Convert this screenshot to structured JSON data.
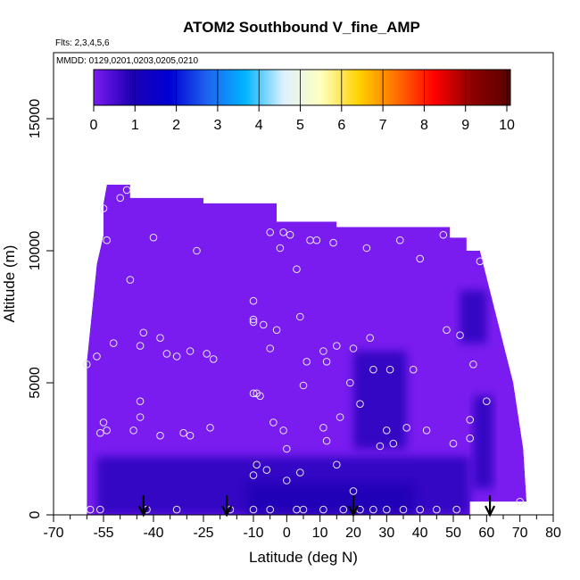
{
  "chart_data": {
    "type": "heatmap",
    "title": "ATOM2 Southbound V_fine_AMP",
    "subtitle_flights": "Flts: 2,3,4,5,6",
    "subtitle_dates": "MMDD: 0129,0201,0203,0205,0210",
    "xlabel": "Latitude (deg N)",
    "ylabel": "Altitude (m)",
    "xlim": [
      -70,
      80
    ],
    "ylim": [
      0,
      17500
    ],
    "x_ticks": [
      -70,
      -55,
      -40,
      -25,
      -10,
      0,
      10,
      20,
      30,
      40,
      50,
      60,
      70,
      80
    ],
    "x_tick_labels": [
      "-70",
      "-55",
      "-40",
      "-25",
      "-10",
      "0",
      "10",
      "20",
      "30",
      "40",
      "50",
      "60",
      "70",
      "80"
    ],
    "x_minor_ticks": [
      -65,
      -60,
      -50,
      -45,
      -35,
      -30,
      -20,
      -15,
      -5,
      5,
      15,
      25,
      35,
      45,
      55,
      65,
      75
    ],
    "y_ticks": [
      0,
      5000,
      10000,
      15000
    ],
    "y_tick_labels": [
      "0",
      "5000",
      "10000",
      "15000"
    ],
    "colorbar": {
      "min": 0,
      "max": 10,
      "ticks": [
        0,
        1,
        2,
        3,
        4,
        5,
        6,
        7,
        8,
        9,
        10
      ],
      "tick_labels": [
        "0",
        "1",
        "2",
        "3",
        "4",
        "5",
        "6",
        "7",
        "8",
        "9",
        "10"
      ],
      "colors": [
        "#7a1cf0",
        "#1e00b4",
        "#0000d2",
        "#1e64f0",
        "#00b4ff",
        "#dcf0ff",
        "#ffffbe",
        "#ffd200",
        "#ff6e00",
        "#ff0000",
        "#8c0000",
        "#5a0000"
      ]
    },
    "profile_markers_lat": [
      -43,
      -18,
      20,
      61
    ],
    "field_color": "#7a1cf0",
    "domain_outline": [
      [
        -60,
        5800
      ],
      [
        -57,
        9500
      ],
      [
        -55,
        10600
      ],
      [
        -55,
        11800
      ],
      [
        -54,
        12500
      ],
      [
        -47,
        12500
      ],
      [
        -47,
        12000
      ],
      [
        -25,
        12000
      ],
      [
        -25,
        11800
      ],
      [
        -3,
        11800
      ],
      [
        -3,
        11100
      ],
      [
        15,
        11100
      ],
      [
        15,
        10900
      ],
      [
        49,
        10900
      ],
      [
        49,
        10500
      ],
      [
        54,
        10500
      ],
      [
        54,
        10000
      ],
      [
        58,
        10000
      ],
      [
        60,
        9000
      ],
      [
        63,
        7500
      ],
      [
        68,
        5000
      ],
      [
        71,
        2500
      ],
      [
        72,
        500
      ],
      [
        55,
        500
      ],
      [
        55,
        0
      ],
      [
        -60,
        0
      ]
    ],
    "dark_regions": [
      {
        "lat0": -57,
        "lat1": 55,
        "alt0": 0,
        "alt1": 2200,
        "value": 1.3
      },
      {
        "lat0": -12,
        "lat1": 38,
        "alt0": 0,
        "alt1": 1200,
        "value": 1.1
      },
      {
        "lat0": 20,
        "lat1": 36,
        "alt0": 2500,
        "alt1": 6200,
        "value": 1.0
      },
      {
        "lat0": 52,
        "lat1": 60,
        "alt0": 6500,
        "alt1": 8500,
        "value": 1.0
      },
      {
        "lat0": 56,
        "lat1": 62,
        "alt0": 1000,
        "alt1": 4500,
        "value": 1.2
      }
    ],
    "sample_points": [
      [
        -60,
        5700
      ],
      [
        -57,
        6000
      ],
      [
        -56,
        3100
      ],
      [
        -55,
        3500
      ],
      [
        -54,
        3200
      ],
      [
        -55,
        11600
      ],
      [
        -54,
        10400
      ],
      [
        -52,
        6500
      ],
      [
        -50,
        12000
      ],
      [
        -48,
        12300
      ],
      [
        -47,
        8900
      ],
      [
        -46,
        3200
      ],
      [
        -44,
        3700
      ],
      [
        -44,
        4300
      ],
      [
        -44,
        6400
      ],
      [
        -43,
        6900
      ],
      [
        -40,
        10500
      ],
      [
        -38,
        6700
      ],
      [
        -38,
        3000
      ],
      [
        -36,
        6100
      ],
      [
        -33,
        6000
      ],
      [
        -31,
        3100
      ],
      [
        -29,
        3000
      ],
      [
        -29,
        6200
      ],
      [
        -27,
        10000
      ],
      [
        -24,
        6100
      ],
      [
        -23,
        3300
      ],
      [
        -22,
        5900
      ],
      [
        -10,
        8100
      ],
      [
        -10,
        7400
      ],
      [
        -10,
        7300
      ],
      [
        -10,
        4600
      ],
      [
        -9,
        4600
      ],
      [
        -8,
        4500
      ],
      [
        -7,
        7200
      ],
      [
        -5,
        10700
      ],
      [
        -9,
        1900
      ],
      [
        -10,
        1500
      ],
      [
        -6,
        1700
      ],
      [
        -5,
        6300
      ],
      [
        -3,
        7000
      ],
      [
        -2,
        10100
      ],
      [
        -1,
        10700
      ],
      [
        1,
        10600
      ],
      [
        3,
        9300
      ],
      [
        4,
        7500
      ],
      [
        5,
        4900
      ],
      [
        6,
        5800
      ],
      [
        7,
        10400
      ],
      [
        9,
        10400
      ],
      [
        11,
        6200
      ],
      [
        12,
        5800
      ],
      [
        14,
        10300
      ],
      [
        15,
        6400
      ],
      [
        16,
        3700
      ],
      [
        19,
        5000
      ],
      [
        20,
        6300
      ],
      [
        22,
        4200
      ],
      [
        24,
        10100
      ],
      [
        25,
        6700
      ],
      [
        26,
        5500
      ],
      [
        28,
        2600
      ],
      [
        30,
        3200
      ],
      [
        31,
        5500
      ],
      [
        32,
        2700
      ],
      [
        34,
        10400
      ],
      [
        36,
        3300
      ],
      [
        38,
        5500
      ],
      [
        40,
        9700
      ],
      [
        42,
        3200
      ],
      [
        47,
        10600
      ],
      [
        48,
        7000
      ],
      [
        50,
        2700
      ],
      [
        52,
        6800
      ],
      [
        55,
        3600
      ],
      [
        55,
        2900
      ],
      [
        56,
        5700
      ],
      [
        58,
        9600
      ],
      [
        60,
        4300
      ],
      [
        11,
        3300
      ],
      [
        12,
        2800
      ],
      [
        15,
        1900
      ],
      [
        0,
        2500
      ],
      [
        -1,
        3200
      ],
      [
        -4,
        3500
      ],
      [
        0,
        1300
      ],
      [
        4,
        1600
      ],
      [
        20,
        900
      ],
      [
        -59,
        200
      ],
      [
        -56,
        200
      ],
      [
        -42,
        200
      ],
      [
        -33,
        200
      ],
      [
        -17,
        200
      ],
      [
        -10,
        200
      ],
      [
        -5,
        200
      ],
      [
        3,
        200
      ],
      [
        5,
        200
      ],
      [
        11,
        200
      ],
      [
        17,
        200
      ],
      [
        22,
        200
      ],
      [
        26,
        200
      ],
      [
        30,
        200
      ],
      [
        35,
        200
      ],
      [
        40,
        200
      ],
      [
        45,
        200
      ],
      [
        51,
        200
      ],
      [
        70,
        500
      ]
    ]
  }
}
